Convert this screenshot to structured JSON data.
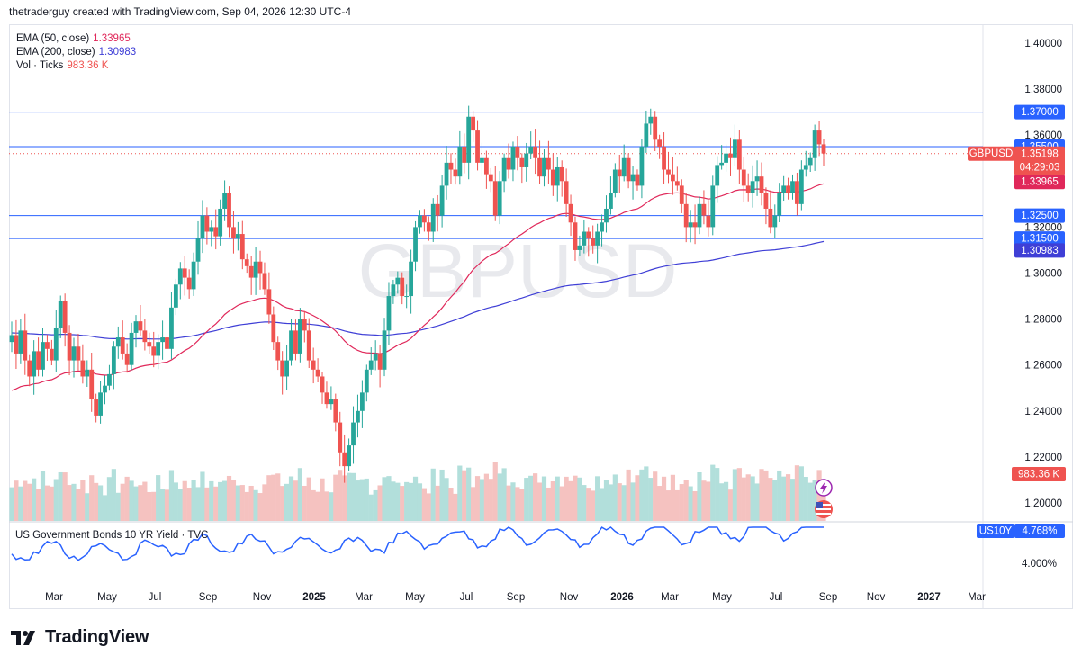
{
  "header": {
    "attribution": "thetraderguy created with TradingView.com, Sep 04, 2026 12:30 UTC-4"
  },
  "legend": {
    "ema50_label": "EMA (50, close)",
    "ema50_value": "1.33965",
    "ema200_label": "EMA (200, close)",
    "ema200_value": "1.30983",
    "vol_label": "Vol · Ticks",
    "vol_value": "983.36 K"
  },
  "watermark": "GBPUSD",
  "brand": "TradingView",
  "colors": {
    "up": "#26a69a",
    "down": "#ef5350",
    "ema50": "#e0285a",
    "ema200": "#3f3fd6",
    "level": "#2962ff",
    "vol_up": "#b2dfdb",
    "vol_down": "#f5c2c0",
    "yield": "#2962ff"
  },
  "chart_data": {
    "type": "candlestick",
    "symbol": "GBPUSD",
    "y_ticks": [
      "1.40000",
      "1.38000",
      "1.36000",
      "1.34000",
      "1.32000",
      "1.30000",
      "1.28000",
      "1.26000",
      "1.24000",
      "1.22000",
      "1.20000"
    ],
    "ylim": [
      1.1945,
      1.4085
    ],
    "x_ticks": [
      "Mar",
      "May",
      "Jul",
      "Sep",
      "Nov",
      "2025",
      "Mar",
      "May",
      "Jul",
      "Sep",
      "Nov",
      "2026",
      "Mar",
      "May",
      "Jul",
      "Sep",
      "Nov",
      "2027",
      "Mar"
    ],
    "horizontal_levels": [
      {
        "price": 1.37,
        "label": "1.37000"
      },
      {
        "price": 1.355,
        "label": "1.35500"
      },
      {
        "price": 1.325,
        "label": "1.32500"
      },
      {
        "price": 1.315,
        "label": "1.31500"
      }
    ],
    "price_labels": [
      {
        "name": "GBPUSD",
        "value": "1.35198",
        "countdown": "04:29:03"
      },
      {
        "name": "EMA 50",
        "value": "1.33965"
      },
      {
        "name": "EMA 200",
        "value": "1.30983"
      },
      {
        "name": "Volume",
        "value": "983.36 K"
      }
    ],
    "last_close": 1.35198,
    "closes": [
      1.273,
      1.265,
      1.275,
      1.262,
      1.255,
      1.266,
      1.258,
      1.27,
      1.267,
      1.262,
      1.276,
      1.288,
      1.274,
      1.262,
      1.268,
      1.262,
      1.255,
      1.258,
      1.245,
      1.238,
      1.248,
      1.251,
      1.256,
      1.268,
      1.272,
      1.265,
      1.26,
      1.274,
      1.279,
      1.275,
      1.27,
      1.268,
      1.264,
      1.27,
      1.272,
      1.267,
      1.285,
      1.295,
      1.302,
      1.298,
      1.293,
      1.305,
      1.315,
      1.325,
      1.318,
      1.32,
      1.316,
      1.328,
      1.335,
      1.32,
      1.315,
      1.317,
      1.306,
      1.303,
      1.298,
      1.305,
      1.3,
      1.293,
      1.282,
      1.27,
      1.262,
      1.255,
      1.262,
      1.275,
      1.265,
      1.28,
      1.275,
      1.262,
      1.258,
      1.255,
      1.248,
      1.243,
      1.245,
      1.235,
      1.222,
      1.216,
      1.225,
      1.235,
      1.24,
      1.248,
      1.258,
      1.262,
      1.265,
      1.258,
      1.275,
      1.29,
      1.295,
      1.298,
      1.29,
      1.29,
      1.305,
      1.32,
      1.325,
      1.322,
      1.318,
      1.33,
      1.325,
      1.338,
      1.348,
      1.345,
      1.342,
      1.355,
      1.348,
      1.368,
      1.362,
      1.348,
      1.35,
      1.343,
      1.34,
      1.325,
      1.34,
      1.35,
      1.345,
      1.355,
      1.35,
      1.346,
      1.352,
      1.355,
      1.35,
      1.342,
      1.35,
      1.345,
      1.338,
      1.346,
      1.34,
      1.33,
      1.322,
      1.31,
      1.312,
      1.318,
      1.315,
      1.312,
      1.318,
      1.322,
      1.328,
      1.335,
      1.345,
      1.342,
      1.35,
      1.34,
      1.343,
      1.338,
      1.355,
      1.365,
      1.368,
      1.358,
      1.355,
      1.345,
      1.343,
      1.34,
      1.338,
      1.33,
      1.32,
      1.322,
      1.32,
      1.33,
      1.325,
      1.32,
      1.338,
      1.347,
      1.348,
      1.352,
      1.35,
      1.358,
      1.345,
      1.338,
      1.335,
      1.34,
      1.342,
      1.335,
      1.328,
      1.32,
      1.325,
      1.335,
      1.338,
      1.335,
      1.34,
      1.33,
      1.345,
      1.347,
      1.35,
      1.362,
      1.356,
      1.352
    ],
    "volume_note": "volume histogram in lower pane of main chart",
    "sub_chart": {
      "title": "US Government Bonds 10 YR Yield · TVC",
      "symbol": "US10Y",
      "last_value": "4.768%",
      "y_ticks": [
        "4.000%"
      ]
    }
  }
}
